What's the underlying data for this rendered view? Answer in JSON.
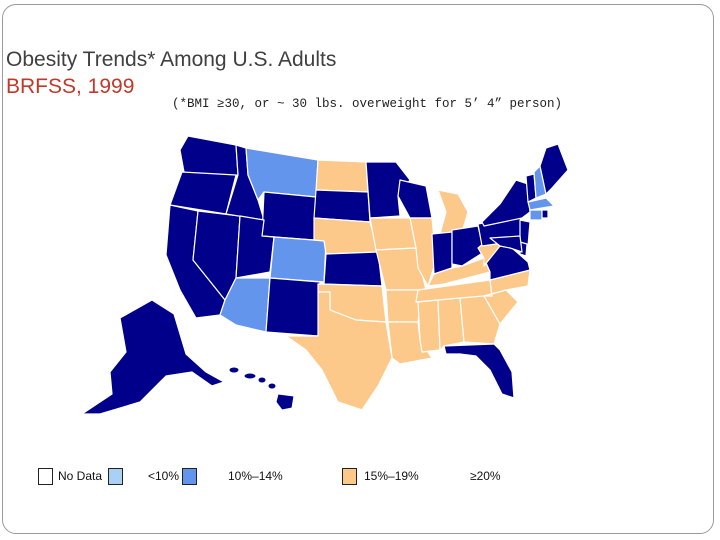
{
  "slide": {
    "title": "Obesity Trends* Among U.S. Adults",
    "source": "BRFSS, 1999",
    "footnote": "(*BMI ≥30, or ~ 30 lbs. overweight for 5’ 4” person)"
  },
  "colors": {
    "no_data": "#ffffff",
    "lt10": "#a9d0f5",
    "c10_14": "#6495ed",
    "c15_19": "#fcc98b",
    "ge20": "#00008b"
  },
  "legend": [
    {
      "key": "no_data",
      "label": "No Data"
    },
    {
      "key": "lt10",
      "label": "<10%"
    },
    {
      "key": "c10_14",
      "label": "10%–14%"
    },
    {
      "key": "c15_19",
      "label": "15%–19%"
    },
    {
      "key": "ge20",
      "label": "≥20%"
    }
  ],
  "states": {
    "WA": "ge20",
    "OR": "ge20",
    "CA": "ge20",
    "NV": "ge20",
    "ID": "ge20",
    "MT": "c10_14",
    "WY": "ge20",
    "UT": "ge20",
    "AZ": "c10_14",
    "CO": "c10_14",
    "NM": "ge20",
    "ND": "c15_19",
    "SD": "ge20",
    "NE": "c15_19",
    "KS": "ge20",
    "OK": "c15_19",
    "TX": "c15_19",
    "MN": "ge20",
    "IA": "c15_19",
    "MO": "c15_19",
    "AR": "c15_19",
    "LA": "c15_19",
    "WI": "ge20",
    "IL": "c15_19",
    "MI": "c15_19",
    "IN": "ge20",
    "OH": "ge20",
    "KY": "c15_19",
    "TN": "c15_19",
    "MS": "c15_19",
    "AL": "c15_19",
    "GA": "c15_19",
    "FL": "ge20",
    "SC": "c15_19",
    "NC": "c15_19",
    "VA": "ge20",
    "WV": "c15_19",
    "PA": "ge20",
    "NY": "ge20",
    "VT": "ge20",
    "NH": "c10_14",
    "ME": "ge20",
    "MA": "c10_14",
    "CT": "c10_14",
    "RI": "ge20",
    "NJ": "ge20",
    "DE": "ge20",
    "MD": "ge20",
    "AK": "ge20",
    "HI": "ge20"
  }
}
